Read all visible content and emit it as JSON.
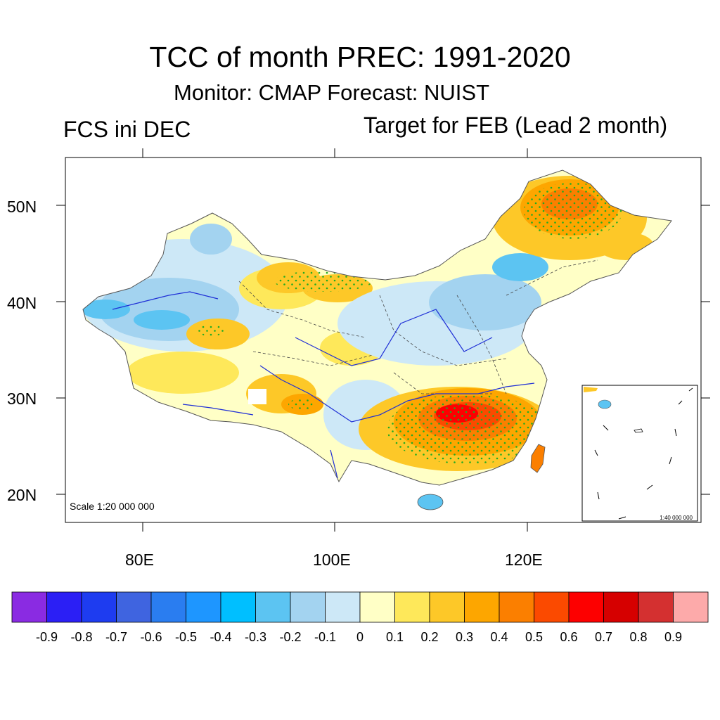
{
  "header": {
    "title": "TCC of month PREC: 1991-2020",
    "subtitle": "Monitor: CMAP   Forecast: NUIST",
    "left_label": "FCS ini DEC",
    "right_label": "Target for FEB (Lead 2 month)"
  },
  "map": {
    "lat_labels": [
      "50N",
      "40N",
      "30N",
      "20N"
    ],
    "lon_labels": [
      "80E",
      "100E",
      "120E"
    ],
    "scale_text": "Scale 1:20 000 000",
    "inset_scale_text": "1:40 000 000",
    "significance_marker_color": "#22aa22",
    "river_color": "#1f2fd6",
    "boundary_color": "#444444"
  },
  "colorbar": {
    "colors": [
      "#8a2be2",
      "#2b1ff5",
      "#1e3cf0",
      "#3f64e0",
      "#2a7df0",
      "#1e96ff",
      "#00bfff",
      "#5cc4f2",
      "#a3d3f0",
      "#cde8f7",
      "#ffffc6",
      "#fee85a",
      "#fdc828",
      "#fda600",
      "#fb7f00",
      "#fb4a00",
      "#fd0000",
      "#d60000",
      "#d43030",
      "#fdaaaa"
    ],
    "labels": [
      "-0.9",
      "-0.8",
      "-0.7",
      "-0.6",
      "-0.5",
      "-0.4",
      "-0.3",
      "-0.2",
      "-0.1",
      "0",
      "0.1",
      "0.2",
      "0.3",
      "0.4",
      "0.5",
      "0.6",
      "0.7",
      "0.8",
      "0.9"
    ]
  }
}
